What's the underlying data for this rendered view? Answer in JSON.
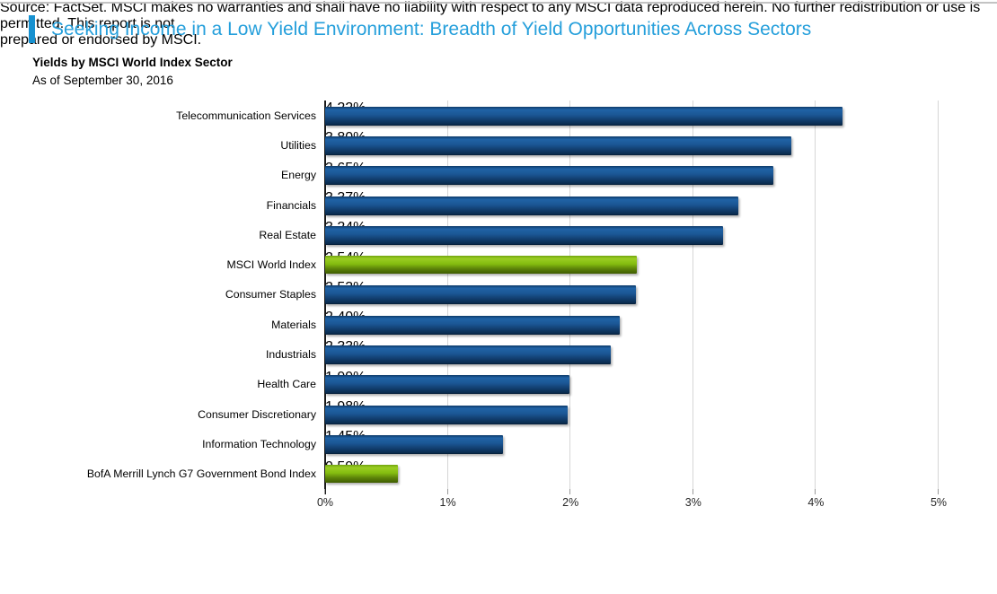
{
  "header": {
    "title": "Seeking Income in a Low Yield Environment: Breadth of Yield Opportunities Across Sectors",
    "title_color": "#259fdb",
    "accent_color": "#1791d0"
  },
  "chart_data": {
    "type": "bar",
    "orientation": "horizontal",
    "title": "Yields by MSCI World Index Sector",
    "as_of": "As of September 30, 2016",
    "categories": [
      "Telecommunication Services",
      "Utilities",
      "Energy",
      "Financials",
      "Real Estate",
      "MSCI World Index",
      "Consumer Staples",
      "Materials",
      "Industrials",
      "Health Care",
      "Consumer Discretionary",
      "Information Technology",
      "BofA Merrill Lynch G7 Government Bond Index"
    ],
    "values": [
      4.22,
      3.8,
      3.65,
      3.37,
      3.24,
      2.54,
      2.53,
      2.4,
      2.33,
      1.99,
      1.98,
      1.45,
      0.59
    ],
    "value_labels": [
      "4.22%",
      "3.80%",
      "3.65%",
      "3.37%",
      "3.24%",
      "2.54%",
      "2.53%",
      "2.40%",
      "2.33%",
      "1.99%",
      "1.98%",
      "1.45%",
      "0.59%"
    ],
    "highlight_indices": [
      5,
      12
    ],
    "xlabel": "",
    "ylabel": "",
    "xlim": [
      0,
      5
    ],
    "x_tick_labels": [
      "0%",
      "1%",
      "2%",
      "3%",
      "4%",
      "5%"
    ],
    "grid": "vertical gridlines at 1% intervals, light gray",
    "legend": "none",
    "colors": {
      "bar_default": "#14528f",
      "bar_highlight": "#84bc11",
      "gridline": "#d6d6d6",
      "axis_line": "#1a1a1a"
    }
  },
  "footer": {
    "line1": "Source: FactSet. MSCI makes no warranties and shall have no liability with respect to any MSCI data reproduced herein. No further redistribution or use is permitted. This report is not",
    "line2": "prepared or endorsed by MSCI."
  }
}
